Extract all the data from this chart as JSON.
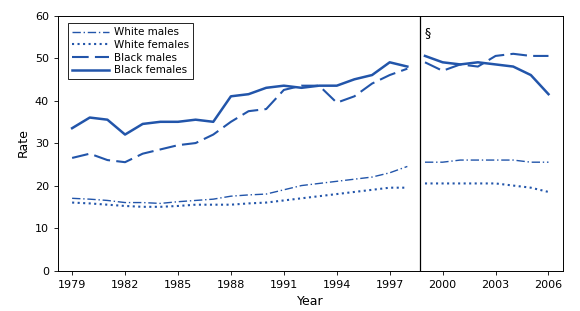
{
  "line_color": "#2255aa",
  "background": "#ffffff",
  "ylabel": "Rate",
  "xlabel": "Year",
  "ylim": [
    0,
    60
  ],
  "yticks": [
    0,
    10,
    20,
    30,
    40,
    50,
    60
  ],
  "divider_x": 1998.7,
  "section_symbol": "§",
  "white_males_x1": [
    1979,
    1980,
    1981,
    1982,
    1983,
    1984,
    1985,
    1986,
    1987,
    1988,
    1989,
    1990,
    1991,
    1992,
    1993,
    1994,
    1995,
    1996,
    1997,
    1998
  ],
  "white_males_y1": [
    17.0,
    16.8,
    16.5,
    16.0,
    16.0,
    15.8,
    16.2,
    16.5,
    16.8,
    17.5,
    17.8,
    18.0,
    19.0,
    20.0,
    20.5,
    21.0,
    21.5,
    22.0,
    23.0,
    24.5
  ],
  "white_males_x2": [
    1999,
    2000,
    2001,
    2002,
    2003,
    2004,
    2005,
    2006
  ],
  "white_males_y2": [
    25.5,
    25.5,
    26.0,
    26.0,
    26.0,
    26.0,
    25.5,
    25.5
  ],
  "white_females_x1": [
    1979,
    1980,
    1981,
    1982,
    1983,
    1984,
    1985,
    1986,
    1987,
    1988,
    1989,
    1990,
    1991,
    1992,
    1993,
    1994,
    1995,
    1996,
    1997,
    1998
  ],
  "white_females_y1": [
    16.0,
    15.8,
    15.5,
    15.2,
    15.0,
    15.0,
    15.2,
    15.5,
    15.5,
    15.5,
    15.8,
    16.0,
    16.5,
    17.0,
    17.5,
    18.0,
    18.5,
    19.0,
    19.5,
    19.5
  ],
  "white_females_x2": [
    1999,
    2000,
    2001,
    2002,
    2003,
    2004,
    2005,
    2006
  ],
  "white_females_y2": [
    20.5,
    20.5,
    20.5,
    20.5,
    20.5,
    20.0,
    19.5,
    18.5
  ],
  "black_males_x1": [
    1979,
    1980,
    1981,
    1982,
    1983,
    1984,
    1985,
    1986,
    1987,
    1988,
    1989,
    1990,
    1991,
    1992,
    1993,
    1994,
    1995,
    1996,
    1997,
    1998
  ],
  "black_males_y1": [
    26.5,
    27.5,
    26.0,
    25.5,
    27.5,
    28.5,
    29.5,
    30.0,
    32.0,
    35.0,
    37.5,
    38.0,
    42.5,
    43.5,
    43.5,
    39.5,
    41.0,
    44.0,
    46.0,
    47.5
  ],
  "black_males_x2": [
    1999,
    2000,
    2001,
    2002,
    2003,
    2004,
    2005,
    2006
  ],
  "black_males_y2": [
    49.0,
    47.0,
    48.5,
    48.0,
    50.5,
    51.0,
    50.5,
    50.5
  ],
  "black_females_x1": [
    1979,
    1980,
    1981,
    1982,
    1983,
    1984,
    1985,
    1986,
    1987,
    1988,
    1989,
    1990,
    1991,
    1992,
    1993,
    1994,
    1995,
    1996,
    1997,
    1998
  ],
  "black_females_y1": [
    33.5,
    36.0,
    35.5,
    32.0,
    34.5,
    35.0,
    35.0,
    35.5,
    35.0,
    41.0,
    41.5,
    43.0,
    43.5,
    43.0,
    43.5,
    43.5,
    45.0,
    46.0,
    49.0,
    48.0
  ],
  "black_females_x2": [
    1999,
    2000,
    2001,
    2002,
    2003,
    2004,
    2005,
    2006
  ],
  "black_females_y2": [
    50.5,
    49.0,
    48.5,
    49.0,
    48.5,
    48.0,
    46.0,
    41.5
  ],
  "xticks_left": [
    1979,
    1982,
    1985,
    1988,
    1991,
    1994,
    1997
  ],
  "xticks_right": [
    2000,
    2003,
    2006
  ]
}
